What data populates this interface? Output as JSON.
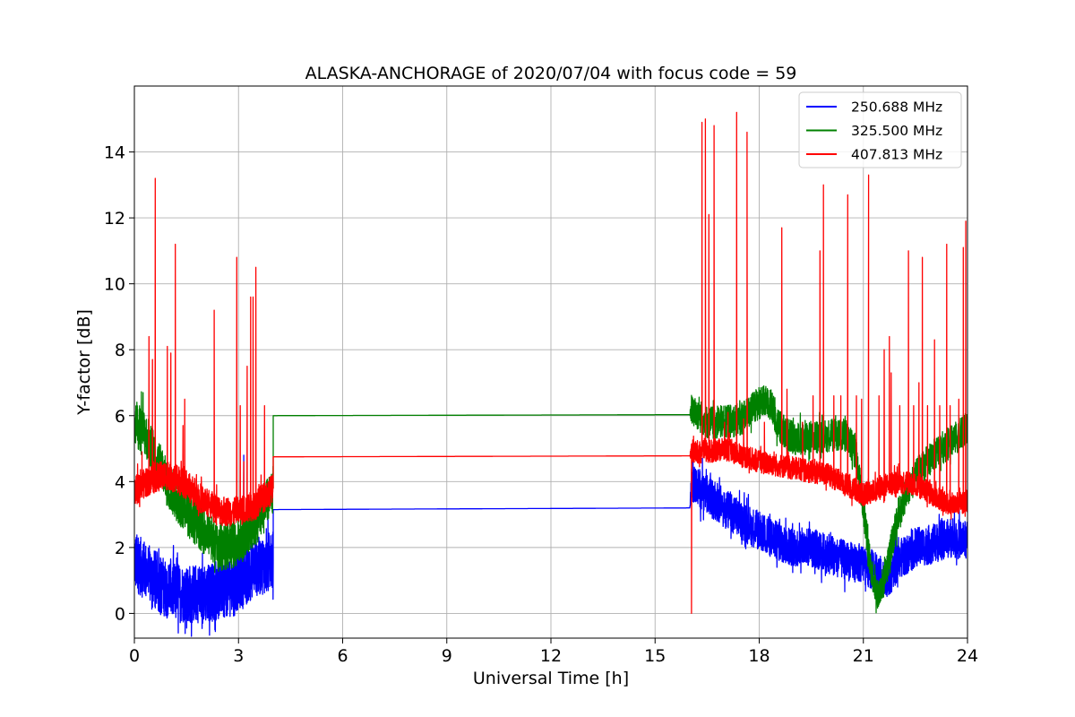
{
  "chart_data": {
    "type": "line",
    "title": "ALASKA-ANCHORAGE of 2020/07/04 with focus code = 59",
    "xlabel": "Universal Time [h]",
    "ylabel": "Y-factor [dB]",
    "xlim": [
      0,
      24
    ],
    "ylim": [
      -0.75,
      16
    ],
    "xticks": [
      0,
      3,
      6,
      9,
      12,
      15,
      18,
      21,
      24
    ],
    "yticks": [
      0,
      2,
      4,
      6,
      8,
      10,
      12,
      14
    ],
    "grid": true,
    "legend_position": "top-right",
    "series": [
      {
        "name": "250.688 MHz",
        "color": "#0000ff",
        "baseline": [
          [
            0,
            1.6
          ],
          [
            0.5,
            1.1
          ],
          [
            1,
            0.7
          ],
          [
            1.5,
            0.6
          ],
          [
            2,
            0.6
          ],
          [
            2.5,
            0.7
          ],
          [
            3,
            1.0
          ],
          [
            3.5,
            1.4
          ],
          [
            4,
            1.6
          ],
          [
            4,
            3.15
          ],
          [
            16,
            3.2
          ],
          [
            16.05,
            4.0
          ],
          [
            16.5,
            3.6
          ],
          [
            17,
            3.2
          ],
          [
            17.5,
            2.8
          ],
          [
            18,
            2.5
          ],
          [
            18.5,
            2.2
          ],
          [
            19,
            2.0
          ],
          [
            19.5,
            2.0
          ],
          [
            20,
            1.8
          ],
          [
            20.5,
            1.6
          ],
          [
            21,
            1.5
          ],
          [
            21.3,
            1.3
          ],
          [
            21.7,
            1.0
          ],
          [
            22,
            1.6
          ],
          [
            22.5,
            2.0
          ],
          [
            23,
            2.1
          ],
          [
            23.5,
            2.3
          ],
          [
            24,
            2.2
          ]
        ],
        "noise": [
          [
            0,
            0.9
          ],
          [
            4,
            0.9
          ],
          [
            4,
            0
          ],
          [
            16,
            0
          ],
          [
            16.05,
            0.6
          ],
          [
            24,
            0.6
          ]
        ],
        "spikes": [
          [
            3.15,
            4.8
          ],
          [
            16.05,
            4.3
          ]
        ]
      },
      {
        "name": "325.500 MHz",
        "color": "#008000",
        "baseline": [
          [
            0,
            5.8
          ],
          [
            0.3,
            5.5
          ],
          [
            0.6,
            4.8
          ],
          [
            1,
            3.8
          ],
          [
            1.5,
            3.1
          ],
          [
            2,
            2.5
          ],
          [
            2.5,
            2.0
          ],
          [
            3,
            2.1
          ],
          [
            3.5,
            2.8
          ],
          [
            3.9,
            3.6
          ],
          [
            4,
            3.8
          ],
          [
            4,
            6.0
          ],
          [
            16,
            6.03
          ],
          [
            16.05,
            6.2
          ],
          [
            16.5,
            5.8
          ],
          [
            17,
            5.8
          ],
          [
            17.5,
            5.9
          ],
          [
            18,
            6.4
          ],
          [
            18.3,
            6.4
          ],
          [
            18.6,
            5.6
          ],
          [
            19,
            5.3
          ],
          [
            19.5,
            5.3
          ],
          [
            20,
            5.4
          ],
          [
            20.5,
            5.4
          ],
          [
            20.8,
            4.8
          ],
          [
            21,
            3.2
          ],
          [
            21.2,
            1.5
          ],
          [
            21.4,
            0.5
          ],
          [
            21.6,
            1.0
          ],
          [
            21.8,
            2.0
          ],
          [
            22,
            3.0
          ],
          [
            22.3,
            3.8
          ],
          [
            22.6,
            4.3
          ],
          [
            23,
            4.8
          ],
          [
            23.5,
            5.2
          ],
          [
            23.9,
            5.5
          ],
          [
            24,
            5.7
          ]
        ],
        "noise": [
          [
            0,
            0.7
          ],
          [
            4,
            0.7
          ],
          [
            4,
            0
          ],
          [
            16,
            0
          ],
          [
            16.05,
            0.5
          ],
          [
            24,
            0.5
          ]
        ],
        "spikes": [
          [
            0.25,
            6.7
          ],
          [
            20.2,
            6.0
          ]
        ]
      },
      {
        "name": "407.813 MHz",
        "color": "#ff0000",
        "baseline": [
          [
            0,
            3.7
          ],
          [
            0.5,
            4.1
          ],
          [
            1,
            4.2
          ],
          [
            1.5,
            3.9
          ],
          [
            2,
            3.4
          ],
          [
            2.5,
            3.1
          ],
          [
            3,
            3.1
          ],
          [
            3.5,
            3.3
          ],
          [
            3.9,
            3.7
          ],
          [
            4,
            3.8
          ],
          [
            4,
            4.75
          ],
          [
            16,
            4.78
          ],
          [
            16.05,
            4.9
          ],
          [
            16.5,
            4.9
          ],
          [
            17,
            5.0
          ],
          [
            17.5,
            4.8
          ],
          [
            18,
            4.6
          ],
          [
            18.5,
            4.5
          ],
          [
            19,
            4.4
          ],
          [
            19.5,
            4.3
          ],
          [
            20,
            4.2
          ],
          [
            20.5,
            3.9
          ],
          [
            21,
            3.6
          ],
          [
            21.5,
            3.8
          ],
          [
            22,
            4.0
          ],
          [
            22.5,
            3.9
          ],
          [
            23,
            3.6
          ],
          [
            23.5,
            3.3
          ],
          [
            24,
            3.4
          ]
        ],
        "noise": [
          [
            0,
            0.45
          ],
          [
            4,
            0.45
          ],
          [
            4,
            0
          ],
          [
            16,
            0
          ],
          [
            16.05,
            0.35
          ],
          [
            24,
            0.35
          ]
        ],
        "spikes": [
          [
            0.22,
            4.9
          ],
          [
            0.42,
            8.4
          ],
          [
            0.52,
            7.7
          ],
          [
            0.6,
            13.2
          ],
          [
            0.95,
            8.1
          ],
          [
            1.05,
            7.9
          ],
          [
            1.18,
            11.2
          ],
          [
            1.4,
            5.7
          ],
          [
            1.45,
            6.5
          ],
          [
            2.3,
            9.2
          ],
          [
            2.95,
            10.8
          ],
          [
            3.05,
            6.3
          ],
          [
            3.15,
            4.6
          ],
          [
            3.25,
            7.5
          ],
          [
            3.35,
            9.6
          ],
          [
            3.42,
            9.6
          ],
          [
            3.5,
            10.5
          ],
          [
            3.65,
            4.2
          ],
          [
            3.75,
            6.3
          ],
          [
            16.05,
            5.0
          ],
          [
            16.35,
            14.9
          ],
          [
            16.45,
            15.0
          ],
          [
            16.55,
            12.1
          ],
          [
            16.7,
            14.8
          ],
          [
            17.0,
            5.8
          ],
          [
            17.1,
            6.1
          ],
          [
            17.35,
            15.2
          ],
          [
            17.55,
            5.9
          ],
          [
            17.65,
            14.6
          ],
          [
            18.15,
            5.8
          ],
          [
            18.65,
            11.7
          ],
          [
            18.8,
            6.8
          ],
          [
            19.25,
            5.8
          ],
          [
            19.55,
            6.6
          ],
          [
            19.75,
            11.0
          ],
          [
            19.85,
            13.0
          ],
          [
            20.15,
            6.6
          ],
          [
            20.35,
            6.6
          ],
          [
            20.55,
            12.7
          ],
          [
            20.8,
            6.6
          ],
          [
            20.95,
            6.5
          ],
          [
            21.15,
            13.3
          ],
          [
            21.45,
            6.6
          ],
          [
            21.6,
            8.0
          ],
          [
            21.75,
            8.4
          ],
          [
            21.8,
            7.3
          ],
          [
            22.05,
            6.3
          ],
          [
            22.3,
            11.0
          ],
          [
            22.45,
            6.3
          ],
          [
            22.6,
            7.0
          ],
          [
            22.7,
            10.8
          ],
          [
            22.85,
            6.3
          ],
          [
            23.05,
            8.3
          ],
          [
            23.2,
            6.3
          ],
          [
            23.4,
            11.2
          ],
          [
            23.5,
            6.3
          ],
          [
            23.75,
            6.5
          ],
          [
            23.88,
            11.1
          ],
          [
            23.95,
            11.9
          ]
        ],
        "dips": [
          [
            16.05,
            0
          ]
        ]
      }
    ]
  }
}
